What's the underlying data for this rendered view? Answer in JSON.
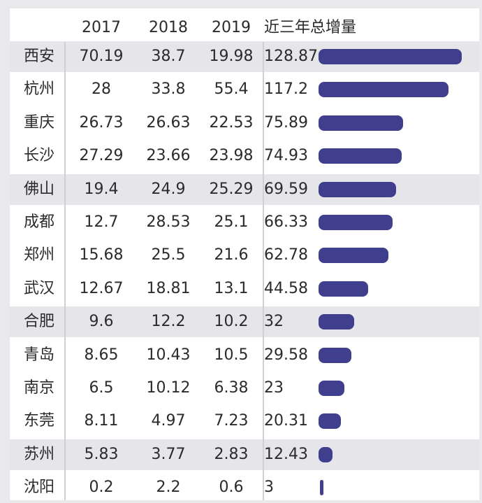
{
  "colors": {
    "bar": "#3f3f8e",
    "shaded_row": "#e6e6ea",
    "background": "#ffffff",
    "gridline": "#cfcfd4"
  },
  "chart_data": {
    "type": "table",
    "columns": [
      "2017",
      "2018",
      "2019",
      "近三年总增量"
    ],
    "rows": [
      {
        "city": "西安",
        "y2017": "70.19",
        "y2018": "38.7",
        "y2019": "19.98",
        "total": "128.87",
        "total_value": 128.87,
        "shaded": true
      },
      {
        "city": "杭州",
        "y2017": "28",
        "y2018": "33.8",
        "y2019": "55.4",
        "total": "117.2",
        "total_value": 117.2,
        "shaded": false
      },
      {
        "city": "重庆",
        "y2017": "26.73",
        "y2018": "26.63",
        "y2019": "22.53",
        "total": "75.89",
        "total_value": 75.89,
        "shaded": false
      },
      {
        "city": "长沙",
        "y2017": "27.29",
        "y2018": "23.66",
        "y2019": "23.98",
        "total": "74.93",
        "total_value": 74.93,
        "shaded": false
      },
      {
        "city": "佛山",
        "y2017": "19.4",
        "y2018": "24.9",
        "y2019": "25.29",
        "total": "69.59",
        "total_value": 69.59,
        "shaded": true
      },
      {
        "city": "成都",
        "y2017": "12.7",
        "y2018": "28.53",
        "y2019": "25.1",
        "total": "66.33",
        "total_value": 66.33,
        "shaded": false
      },
      {
        "city": "郑州",
        "y2017": "15.68",
        "y2018": "25.5",
        "y2019": "21.6",
        "total": "62.78",
        "total_value": 62.78,
        "shaded": false
      },
      {
        "city": "武汉",
        "y2017": "12.67",
        "y2018": "18.81",
        "y2019": "13.1",
        "total": "44.58",
        "total_value": 44.58,
        "shaded": false
      },
      {
        "city": "合肥",
        "y2017": "9.6",
        "y2018": "12.2",
        "y2019": "10.2",
        "total": "32",
        "total_value": 32,
        "shaded": true
      },
      {
        "city": "青岛",
        "y2017": "8.65",
        "y2018": "10.43",
        "y2019": "10.5",
        "total": "29.58",
        "total_value": 29.58,
        "shaded": false
      },
      {
        "city": "南京",
        "y2017": "6.5",
        "y2018": "10.12",
        "y2019": "6.38",
        "total": "23",
        "total_value": 23,
        "shaded": false
      },
      {
        "city": "东莞",
        "y2017": "8.11",
        "y2018": "4.97",
        "y2019": "7.23",
        "total": "20.31",
        "total_value": 20.31,
        "shaded": false
      },
      {
        "city": "苏州",
        "y2017": "5.83",
        "y2018": "3.77",
        "y2019": "2.83",
        "total": "12.43",
        "total_value": 12.43,
        "shaded": true
      },
      {
        "city": "沈阳",
        "y2017": "0.2",
        "y2018": "2.2",
        "y2019": "0.6",
        "total": "3",
        "total_value": 3,
        "shaded": false
      }
    ]
  }
}
